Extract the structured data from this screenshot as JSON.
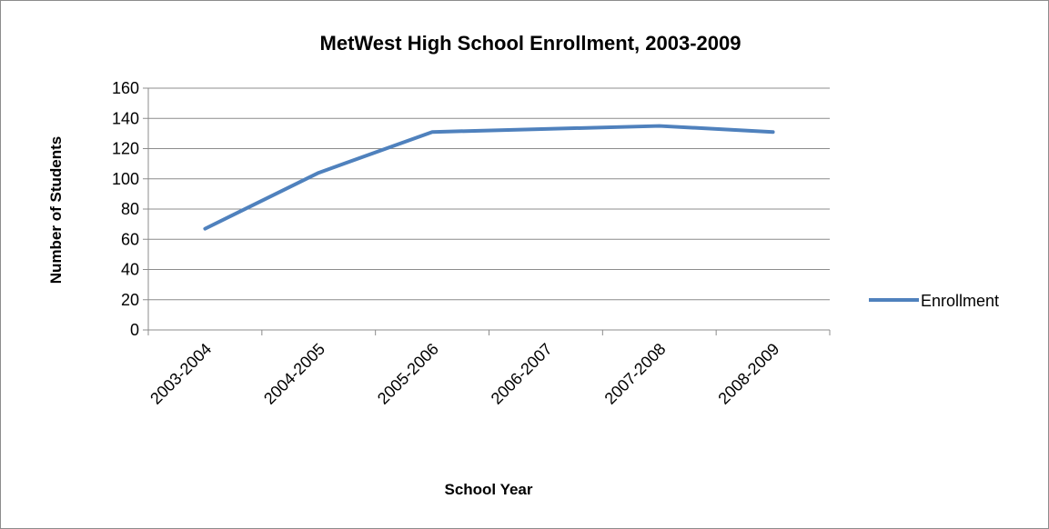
{
  "chart_data": {
    "type": "line",
    "title": "MetWest High School Enrollment, 2003-2009",
    "xlabel": "School Year",
    "ylabel": "Number of Students",
    "categories": [
      "2003-2004",
      "2004-2005",
      "2005-2006",
      "2006-2007",
      "2007-2008",
      "2008-2009"
    ],
    "series": [
      {
        "name": "Enrollment",
        "values": [
          67,
          104,
          131,
          133,
          135,
          131
        ],
        "color": "#4f81bd"
      }
    ],
    "ylim": [
      0,
      160
    ],
    "yticks": [
      0,
      20,
      40,
      60,
      80,
      100,
      120,
      140,
      160
    ],
    "grid": "horizontal",
    "legend_position": "right"
  }
}
